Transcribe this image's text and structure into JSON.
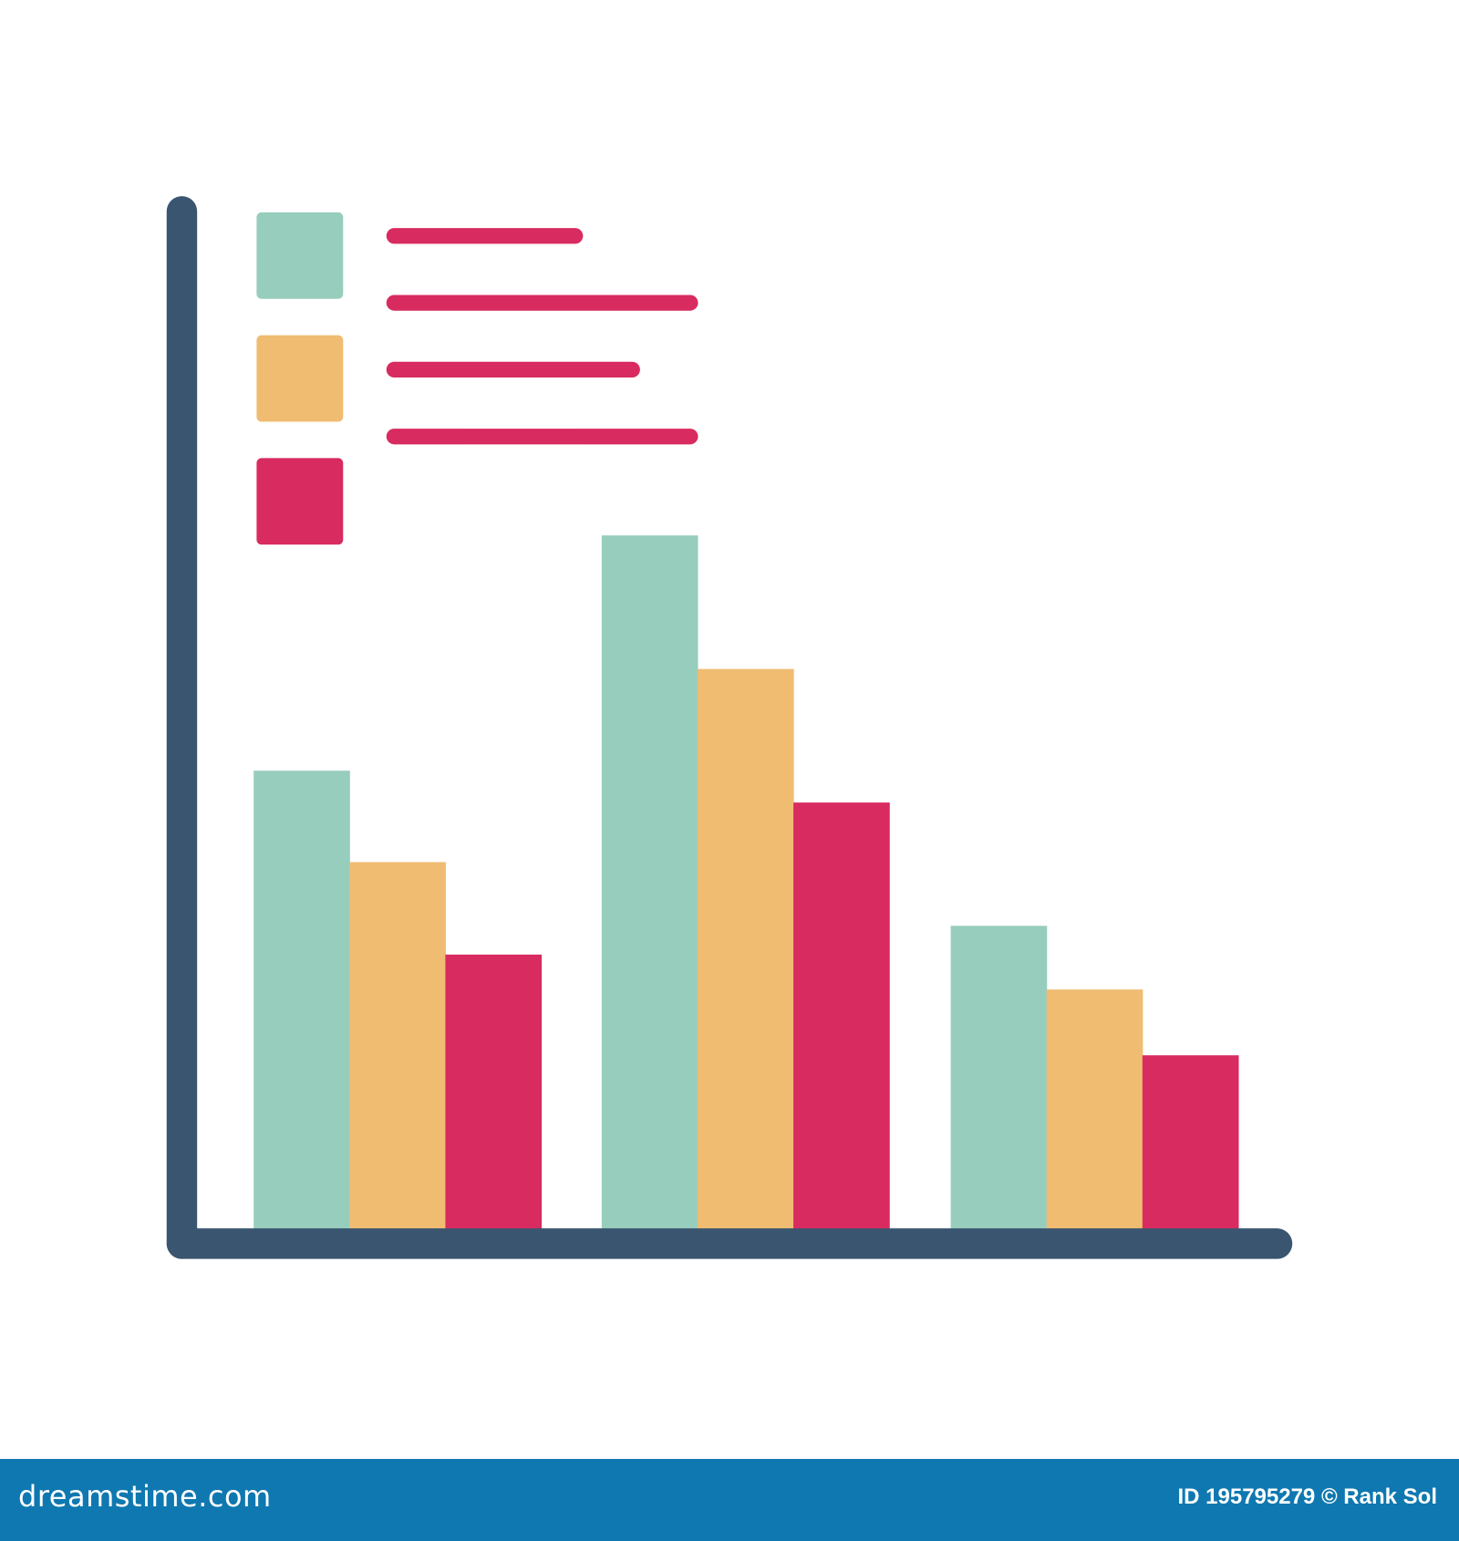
{
  "chart_data": {
    "type": "bar",
    "title": "",
    "xlabel": "",
    "ylabel": "",
    "categories": [
      "",
      "",
      ""
    ],
    "ylim": [
      0,
      100
    ],
    "grid": false,
    "legend": "top-left",
    "series": [
      {
        "color": "#97cdbd",
        "values": [
          44.6,
          67.5,
          29.5
        ]
      },
      {
        "color": "#f0bc72",
        "values": [
          35.7,
          54.5,
          23.3
        ]
      },
      {
        "color": "#d82b5f",
        "values": [
          26.7,
          41.5,
          16.9
        ]
      }
    ],
    "axis_color": "#3a5570",
    "legend_line_color": "#d82b5f"
  },
  "footer": {
    "brand": "dreamstime.com",
    "credit": "ID 195795279 © Rank Sol",
    "background": "#0f78b0"
  }
}
